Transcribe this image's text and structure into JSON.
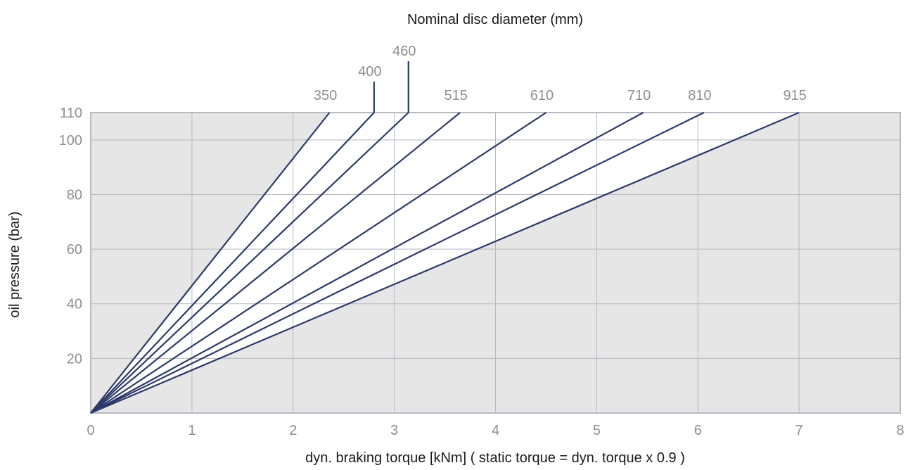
{
  "chart_data": {
    "type": "line",
    "title": "Nominal disc diameter (mm)",
    "xlabel": "dyn. braking torque [kNm] ( static torque = dyn. torque x 0.9 )",
    "ylabel": "oil pressure (bar)",
    "xlim": [
      0,
      8
    ],
    "ylim": [
      0,
      110
    ],
    "x_ticks": [
      0,
      1,
      2,
      3,
      4,
      5,
      6,
      7,
      8
    ],
    "y_ticks": [
      20,
      40,
      60,
      80,
      100,
      110
    ],
    "grid": true,
    "background_color": "#e6e6e6",
    "series_fill_color": "#ffffff",
    "line_color": "#2d3a68",
    "series": [
      {
        "name": "350",
        "x": [
          0,
          2.36
        ],
        "y": [
          0,
          110
        ]
      },
      {
        "name": "400",
        "x": [
          0,
          2.8
        ],
        "y": [
          0,
          110
        ]
      },
      {
        "name": "460",
        "x": [
          0,
          3.14
        ],
        "y": [
          0,
          110
        ]
      },
      {
        "name": "515",
        "x": [
          0,
          3.65
        ],
        "y": [
          0,
          110
        ]
      },
      {
        "name": "610",
        "x": [
          0,
          4.5
        ],
        "y": [
          0,
          110
        ]
      },
      {
        "name": "710",
        "x": [
          0,
          5.46
        ],
        "y": [
          0,
          110
        ]
      },
      {
        "name": "810",
        "x": [
          0,
          6.06
        ],
        "y": [
          0,
          110
        ]
      },
      {
        "name": "915",
        "x": [
          0,
          7.0
        ],
        "y": [
          0,
          110
        ]
      }
    ]
  }
}
